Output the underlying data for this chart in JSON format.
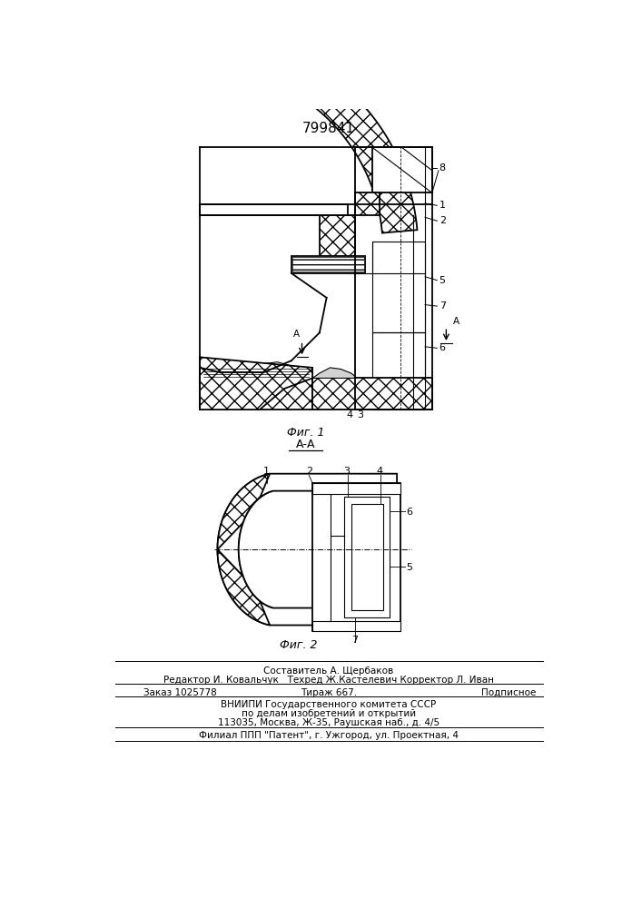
{
  "title": "799841",
  "fig1_caption": "Фиг. 1",
  "fig2_caption": "Фиг. 2",
  "section_label": "А-А",
  "bg_color": "#ffffff",
  "footer_lines": [
    "Составитель А. Щербаков",
    "Редактор И. Ковальчук   Техред Ж.Кастелевич Корректор Л. Иван",
    "Заказ 1025778",
    "Тираж 667.",
    "Подписное",
    "ВНИИПИ Государственного комитета СССР",
    "по делам изобретений и открытий",
    "113035, Москва, Ж-35, Раушская наб., д. 4/5",
    "Филиал ППП \"Патент\", г. Ужгород, ул. Проектная, 4"
  ]
}
